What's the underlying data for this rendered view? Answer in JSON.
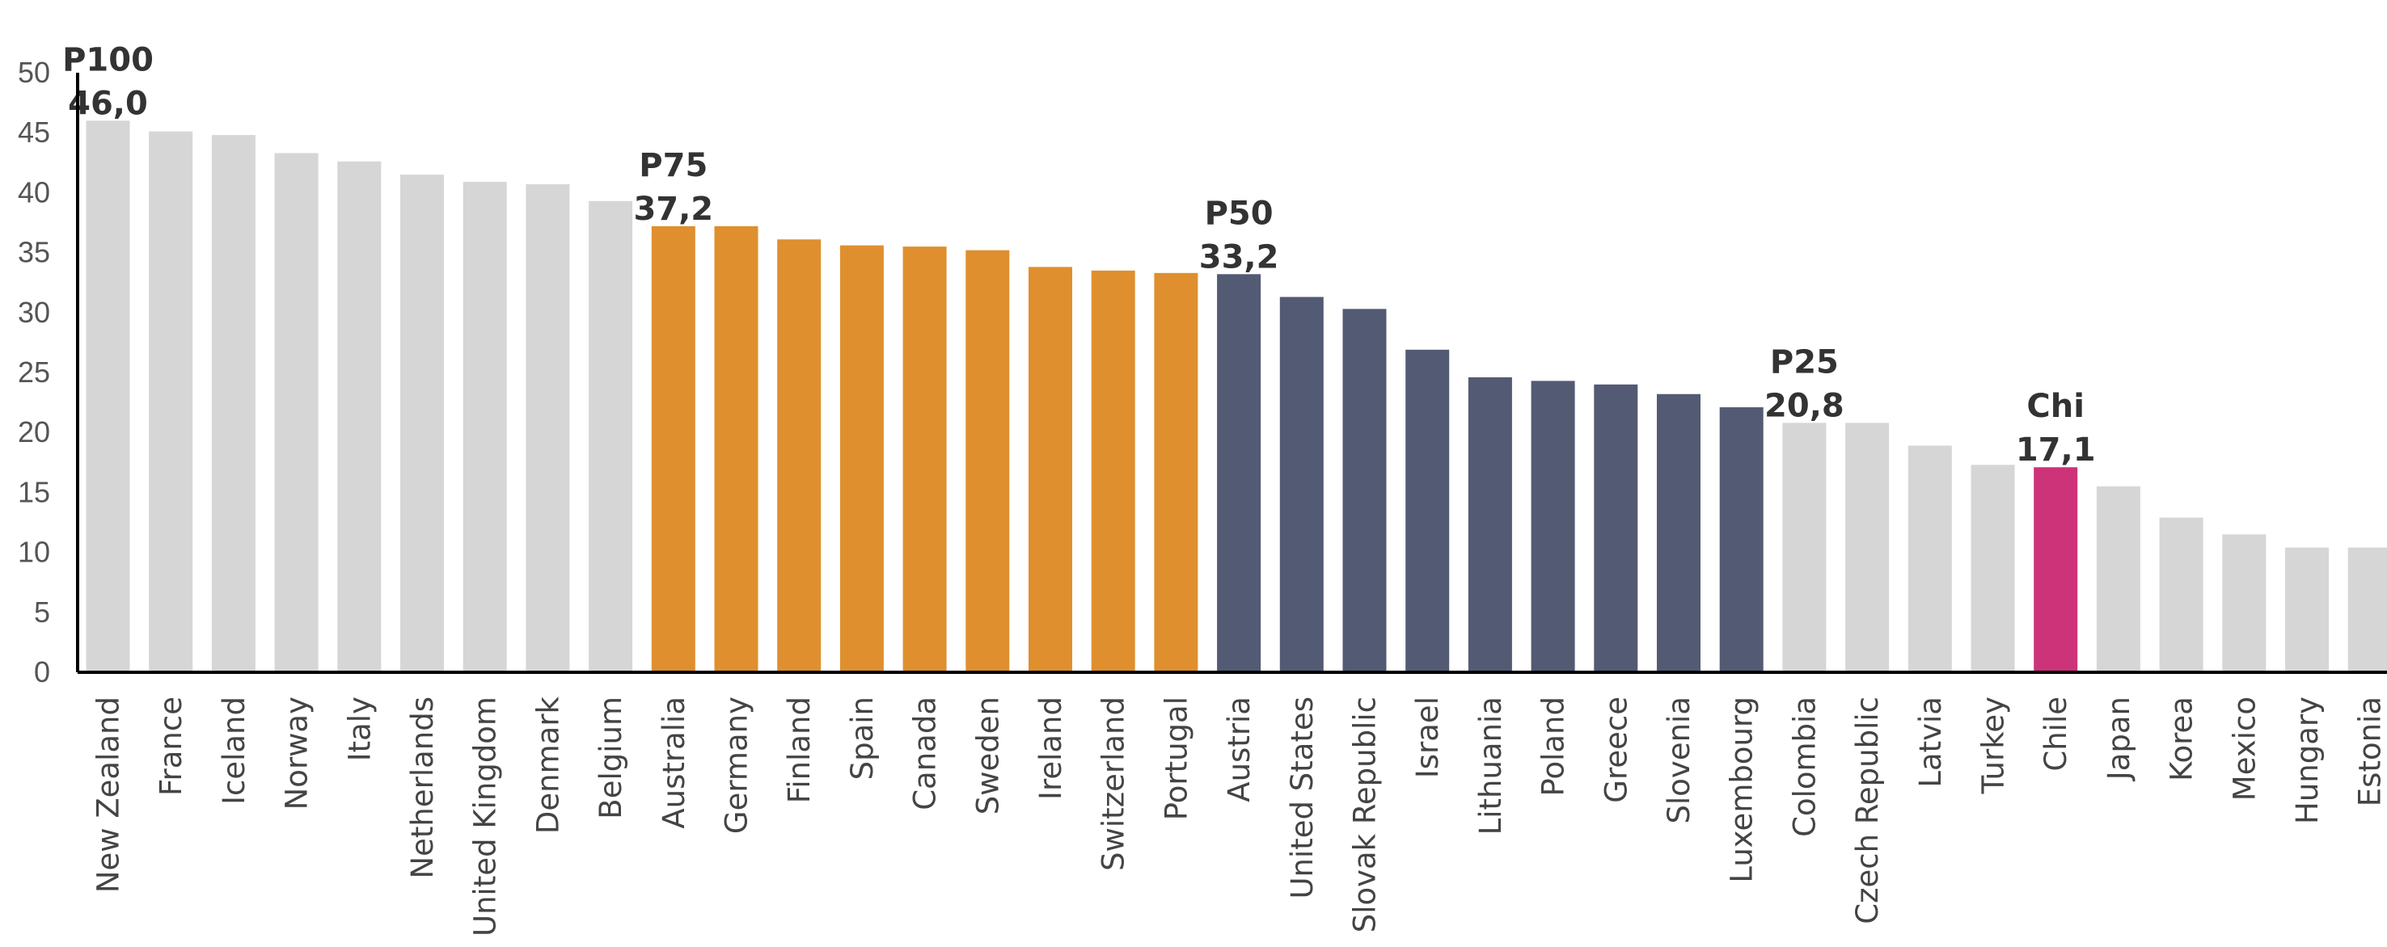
{
  "chart_data": {
    "type": "bar",
    "title": "",
    "xlabel": "",
    "ylabel": "",
    "ylim": [
      0,
      50
    ],
    "yticks": [
      0,
      5,
      10,
      15,
      20,
      25,
      30,
      35,
      40,
      45,
      50
    ],
    "grid": false,
    "categories": [
      "New Zealand",
      "France",
      "Iceland",
      "Norway",
      "Italy",
      "Netherlands",
      "United Kingdom",
      "Denmark",
      "Belgium",
      "Australia",
      "Germany",
      "Finland",
      "Spain",
      "Canada",
      "Sweden",
      "Ireland",
      "Switzerland",
      "Portugal",
      "Austria",
      "United States",
      "Slovak Republic",
      "Israel",
      "Lithuania",
      "Poland",
      "Greece",
      "Slovenia",
      "Luxembourg",
      "Colombia",
      "Czech Republic",
      "Latvia",
      "Turkey",
      "Chile",
      "Japan",
      "Korea",
      "Mexico",
      "Hungary",
      "Estonia"
    ],
    "values": [
      46.0,
      45.1,
      44.8,
      43.3,
      42.6,
      41.5,
      40.9,
      40.7,
      39.3,
      37.2,
      37.2,
      36.1,
      35.6,
      35.5,
      35.2,
      33.8,
      33.5,
      33.3,
      33.2,
      31.3,
      30.3,
      26.9,
      24.6,
      24.3,
      24.0,
      23.2,
      22.1,
      20.8,
      20.8,
      18.9,
      17.3,
      17.1,
      15.5,
      12.9,
      11.5,
      10.4,
      10.4
    ],
    "groups": [
      "outside",
      "outside",
      "outside",
      "outside",
      "outside",
      "outside",
      "outside",
      "outside",
      "outside",
      "p75_p50",
      "p75_p50",
      "p75_p50",
      "p75_p50",
      "p75_p50",
      "p75_p50",
      "p75_p50",
      "p75_p50",
      "p75_p50",
      "p50_p25",
      "p50_p25",
      "p50_p25",
      "p50_p25",
      "p50_p25",
      "p50_p25",
      "p50_p25",
      "p50_p25",
      "p50_p25",
      "outside",
      "outside",
      "outside",
      "outside",
      "chile",
      "outside",
      "outside",
      "outside",
      "outside",
      "outside"
    ],
    "colors": {
      "outside": "#d6d6d6",
      "p75_p50": "#df8f2e",
      "p50_p25": "#535a73",
      "chile": "#cc3379",
      "axis": "#000000"
    },
    "annotations": [
      {
        "index": 0,
        "label": "P100",
        "value": "46,0"
      },
      {
        "index": 9,
        "label": "P75",
        "value": "37,2"
      },
      {
        "index": 18,
        "label": "P50",
        "value": "33,2"
      },
      {
        "index": 27,
        "label": "P25",
        "value": "20,8"
      },
      {
        "index": 31,
        "label": "Chi",
        "value": "17,1"
      }
    ]
  }
}
